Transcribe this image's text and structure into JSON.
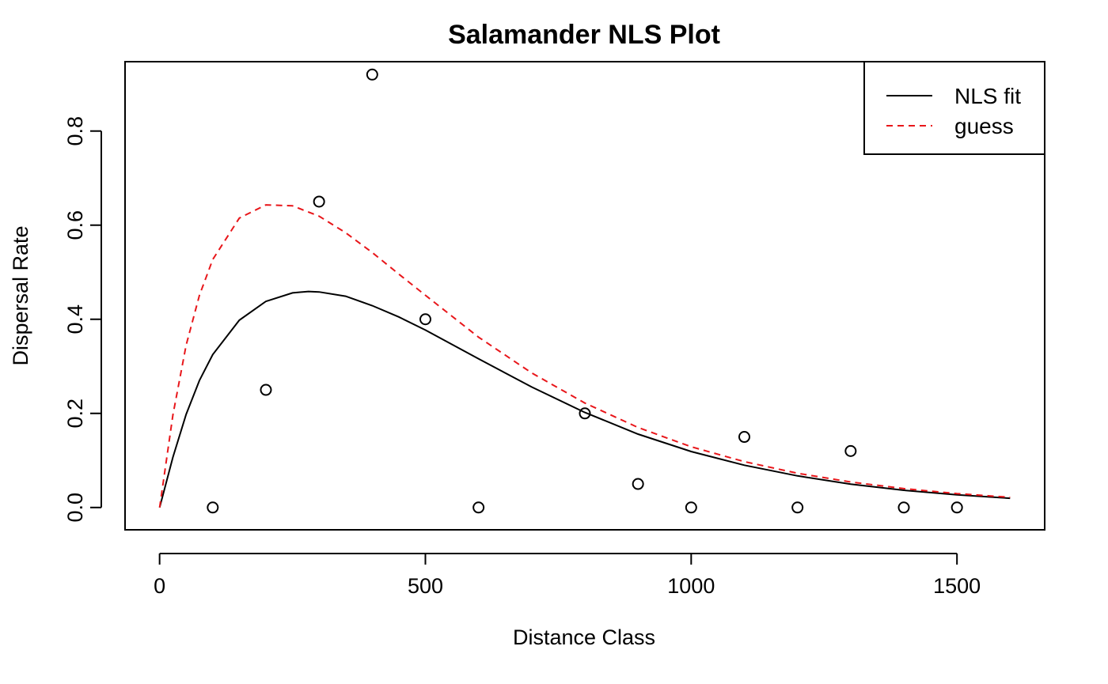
{
  "chart_data": {
    "type": "scatter",
    "title": "Salamander NLS Plot",
    "xlabel": "Distance Class",
    "ylabel": "Dispersal Rate",
    "xlim": [
      -65,
      1665
    ],
    "ylim": [
      -0.0474,
      0.9474
    ],
    "xticks": [
      0,
      500,
      1000,
      1500
    ],
    "yticks": [
      0.0,
      0.2,
      0.4,
      0.6,
      0.8
    ],
    "x_tick_labels": [
      "0",
      "500",
      "1000",
      "1500"
    ],
    "y_tick_labels": [
      "0.0",
      "0.2",
      "0.4",
      "0.6",
      "0.8"
    ],
    "grid": false,
    "legend_position": "top-right",
    "points": {
      "x": [
        100,
        200,
        300,
        400,
        500,
        600,
        800,
        900,
        1000,
        1100,
        1200,
        1300,
        1400,
        1500
      ],
      "y": [
        0.0,
        0.25,
        0.65,
        0.92,
        0.4,
        0.0,
        0.2,
        0.05,
        0.0,
        0.15,
        0.0,
        0.12,
        0.0,
        0.0
      ]
    },
    "series": [
      {
        "name": "NLS fit",
        "color": "#000000",
        "dash": "solid",
        "x": [
          0,
          25,
          50,
          75,
          100,
          150,
          200,
          250,
          280,
          300,
          350,
          400,
          450,
          500,
          600,
          700,
          800,
          900,
          1000,
          1100,
          1200,
          1300,
          1400,
          1500,
          1600
        ],
        "y": [
          0.0,
          0.107,
          0.198,
          0.27,
          0.325,
          0.398,
          0.438,
          0.456,
          0.459,
          0.458,
          0.449,
          0.429,
          0.405,
          0.377,
          0.316,
          0.256,
          0.202,
          0.156,
          0.119,
          0.0899,
          0.0672,
          0.0498,
          0.0367,
          0.0269,
          0.0196
        ]
      },
      {
        "name": "guess",
        "color": "#e8161a",
        "dash": "dashed",
        "x": [
          0,
          25,
          50,
          75,
          100,
          150,
          200,
          250,
          300,
          350,
          400,
          450,
          500,
          600,
          700,
          800,
          900,
          1000,
          1100,
          1200,
          1300,
          1400,
          1500,
          1600
        ],
        "y": [
          0.0,
          0.197,
          0.345,
          0.451,
          0.527,
          0.615,
          0.643,
          0.641,
          0.619,
          0.584,
          0.542,
          0.496,
          0.451,
          0.362,
          0.286,
          0.222,
          0.17,
          0.129,
          0.0974,
          0.0728,
          0.0542,
          0.0401,
          0.0295,
          0.0217
        ]
      }
    ]
  }
}
